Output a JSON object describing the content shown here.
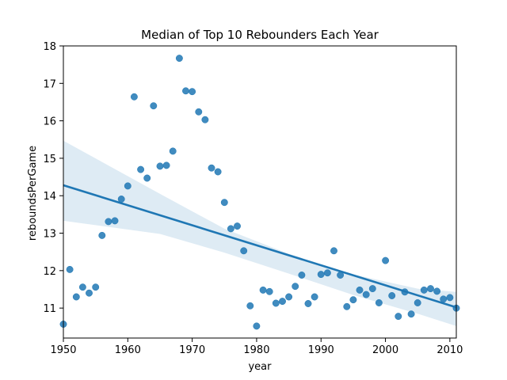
{
  "chart_data": {
    "type": "scatter",
    "title": "Median of Top 10 Rebounders Each Year",
    "xlabel": "year",
    "ylabel": "reboundsPerGame",
    "xlim": [
      1950,
      2011
    ],
    "ylim": [
      10.2,
      18
    ],
    "x_ticks": [
      1950,
      1960,
      1970,
      1980,
      1990,
      2000,
      2010
    ],
    "y_ticks": [
      11,
      12,
      13,
      14,
      15,
      16,
      17,
      18
    ],
    "grid": false,
    "legend": "none",
    "point_color": "#1f77b4",
    "regression": {
      "start": [
        1950,
        14.28
      ],
      "end": [
        2011,
        11.02
      ],
      "ci_upper": [
        [
          1950,
          15.47
        ],
        [
          1965,
          14.05
        ],
        [
          1975,
          13.12
        ],
        [
          1985,
          12.45
        ],
        [
          1995,
          11.9
        ],
        [
          2005,
          11.52
        ],
        [
          2011,
          11.43
        ]
      ],
      "ci_lower": [
        [
          1950,
          13.33
        ],
        [
          1965,
          12.98
        ],
        [
          1975,
          12.48
        ],
        [
          1985,
          11.92
        ],
        [
          1995,
          11.35
        ],
        [
          2005,
          10.85
        ],
        [
          2011,
          10.52
        ]
      ]
    },
    "series": [
      {
        "points": [
          [
            1950,
            10.57
          ],
          [
            1951,
            12.03
          ],
          [
            1952,
            11.3
          ],
          [
            1953,
            11.56
          ],
          [
            1954,
            11.4
          ],
          [
            1955,
            11.56
          ],
          [
            1956,
            12.94
          ],
          [
            1957,
            13.31
          ],
          [
            1958,
            13.33
          ],
          [
            1959,
            13.91
          ],
          [
            1960,
            14.26
          ],
          [
            1961,
            16.64
          ],
          [
            1962,
            14.7
          ],
          [
            1963,
            14.47
          ],
          [
            1964,
            16.4
          ],
          [
            1965,
            14.79
          ],
          [
            1966,
            14.81
          ],
          [
            1967,
            15.19
          ],
          [
            1968,
            17.67
          ],
          [
            1969,
            16.8
          ],
          [
            1970,
            16.78
          ],
          [
            1971,
            16.24
          ],
          [
            1972,
            16.03
          ],
          [
            1973,
            14.74
          ],
          [
            1974,
            14.64
          ],
          [
            1975,
            13.82
          ],
          [
            1976,
            13.12
          ],
          [
            1977,
            13.19
          ],
          [
            1978,
            12.53
          ],
          [
            1979,
            11.06
          ],
          [
            1980,
            10.52
          ],
          [
            1981,
            11.48
          ],
          [
            1982,
            11.44
          ],
          [
            1983,
            11.13
          ],
          [
            1984,
            11.18
          ],
          [
            1985,
            11.3
          ],
          [
            1986,
            11.58
          ],
          [
            1987,
            11.88
          ],
          [
            1988,
            11.12
          ],
          [
            1989,
            11.3
          ],
          [
            1990,
            11.9
          ],
          [
            1991,
            11.94
          ],
          [
            1992,
            12.53
          ],
          [
            1993,
            11.88
          ],
          [
            1994,
            11.04
          ],
          [
            1995,
            11.22
          ],
          [
            1996,
            11.48
          ],
          [
            1997,
            11.36
          ],
          [
            1998,
            11.52
          ],
          [
            1999,
            11.14
          ],
          [
            2000,
            12.27
          ],
          [
            2001,
            11.33
          ],
          [
            2002,
            10.78
          ],
          [
            2003,
            11.43
          ],
          [
            2004,
            10.84
          ],
          [
            2005,
            11.14
          ],
          [
            2006,
            11.48
          ],
          [
            2007,
            11.52
          ],
          [
            2008,
            11.45
          ],
          [
            2009,
            11.24
          ],
          [
            2010,
            11.28
          ],
          [
            2011,
            11.0
          ]
        ]
      }
    ]
  }
}
